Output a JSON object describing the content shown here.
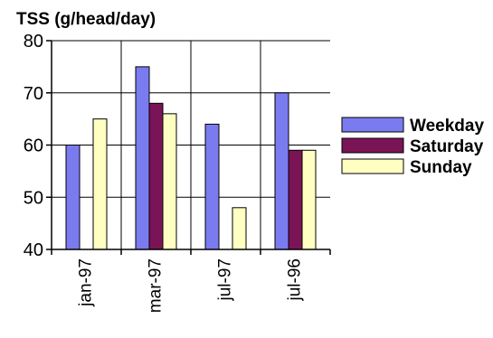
{
  "chart_data": {
    "type": "bar",
    "title": "TSS (g/head/day)",
    "xlabel": "",
    "ylabel": "",
    "categories": [
      "jan-97",
      "mar-97",
      "jul-97",
      "jul-96"
    ],
    "series": [
      {
        "name": "Weekday",
        "values": [
          60,
          75,
          64,
          70
        ],
        "color": "#7B7BF0"
      },
      {
        "name": "Saturday",
        "values": [
          40,
          68,
          40,
          59
        ],
        "color": "#7A1456"
      },
      {
        "name": "Sunday",
        "values": [
          65,
          66,
          48,
          59
        ],
        "color": "#FFFFC2"
      }
    ],
    "ylim": [
      40,
      80
    ],
    "yticks": [
      40,
      50,
      60,
      70,
      80
    ],
    "grid": true,
    "legend_position": "right"
  }
}
